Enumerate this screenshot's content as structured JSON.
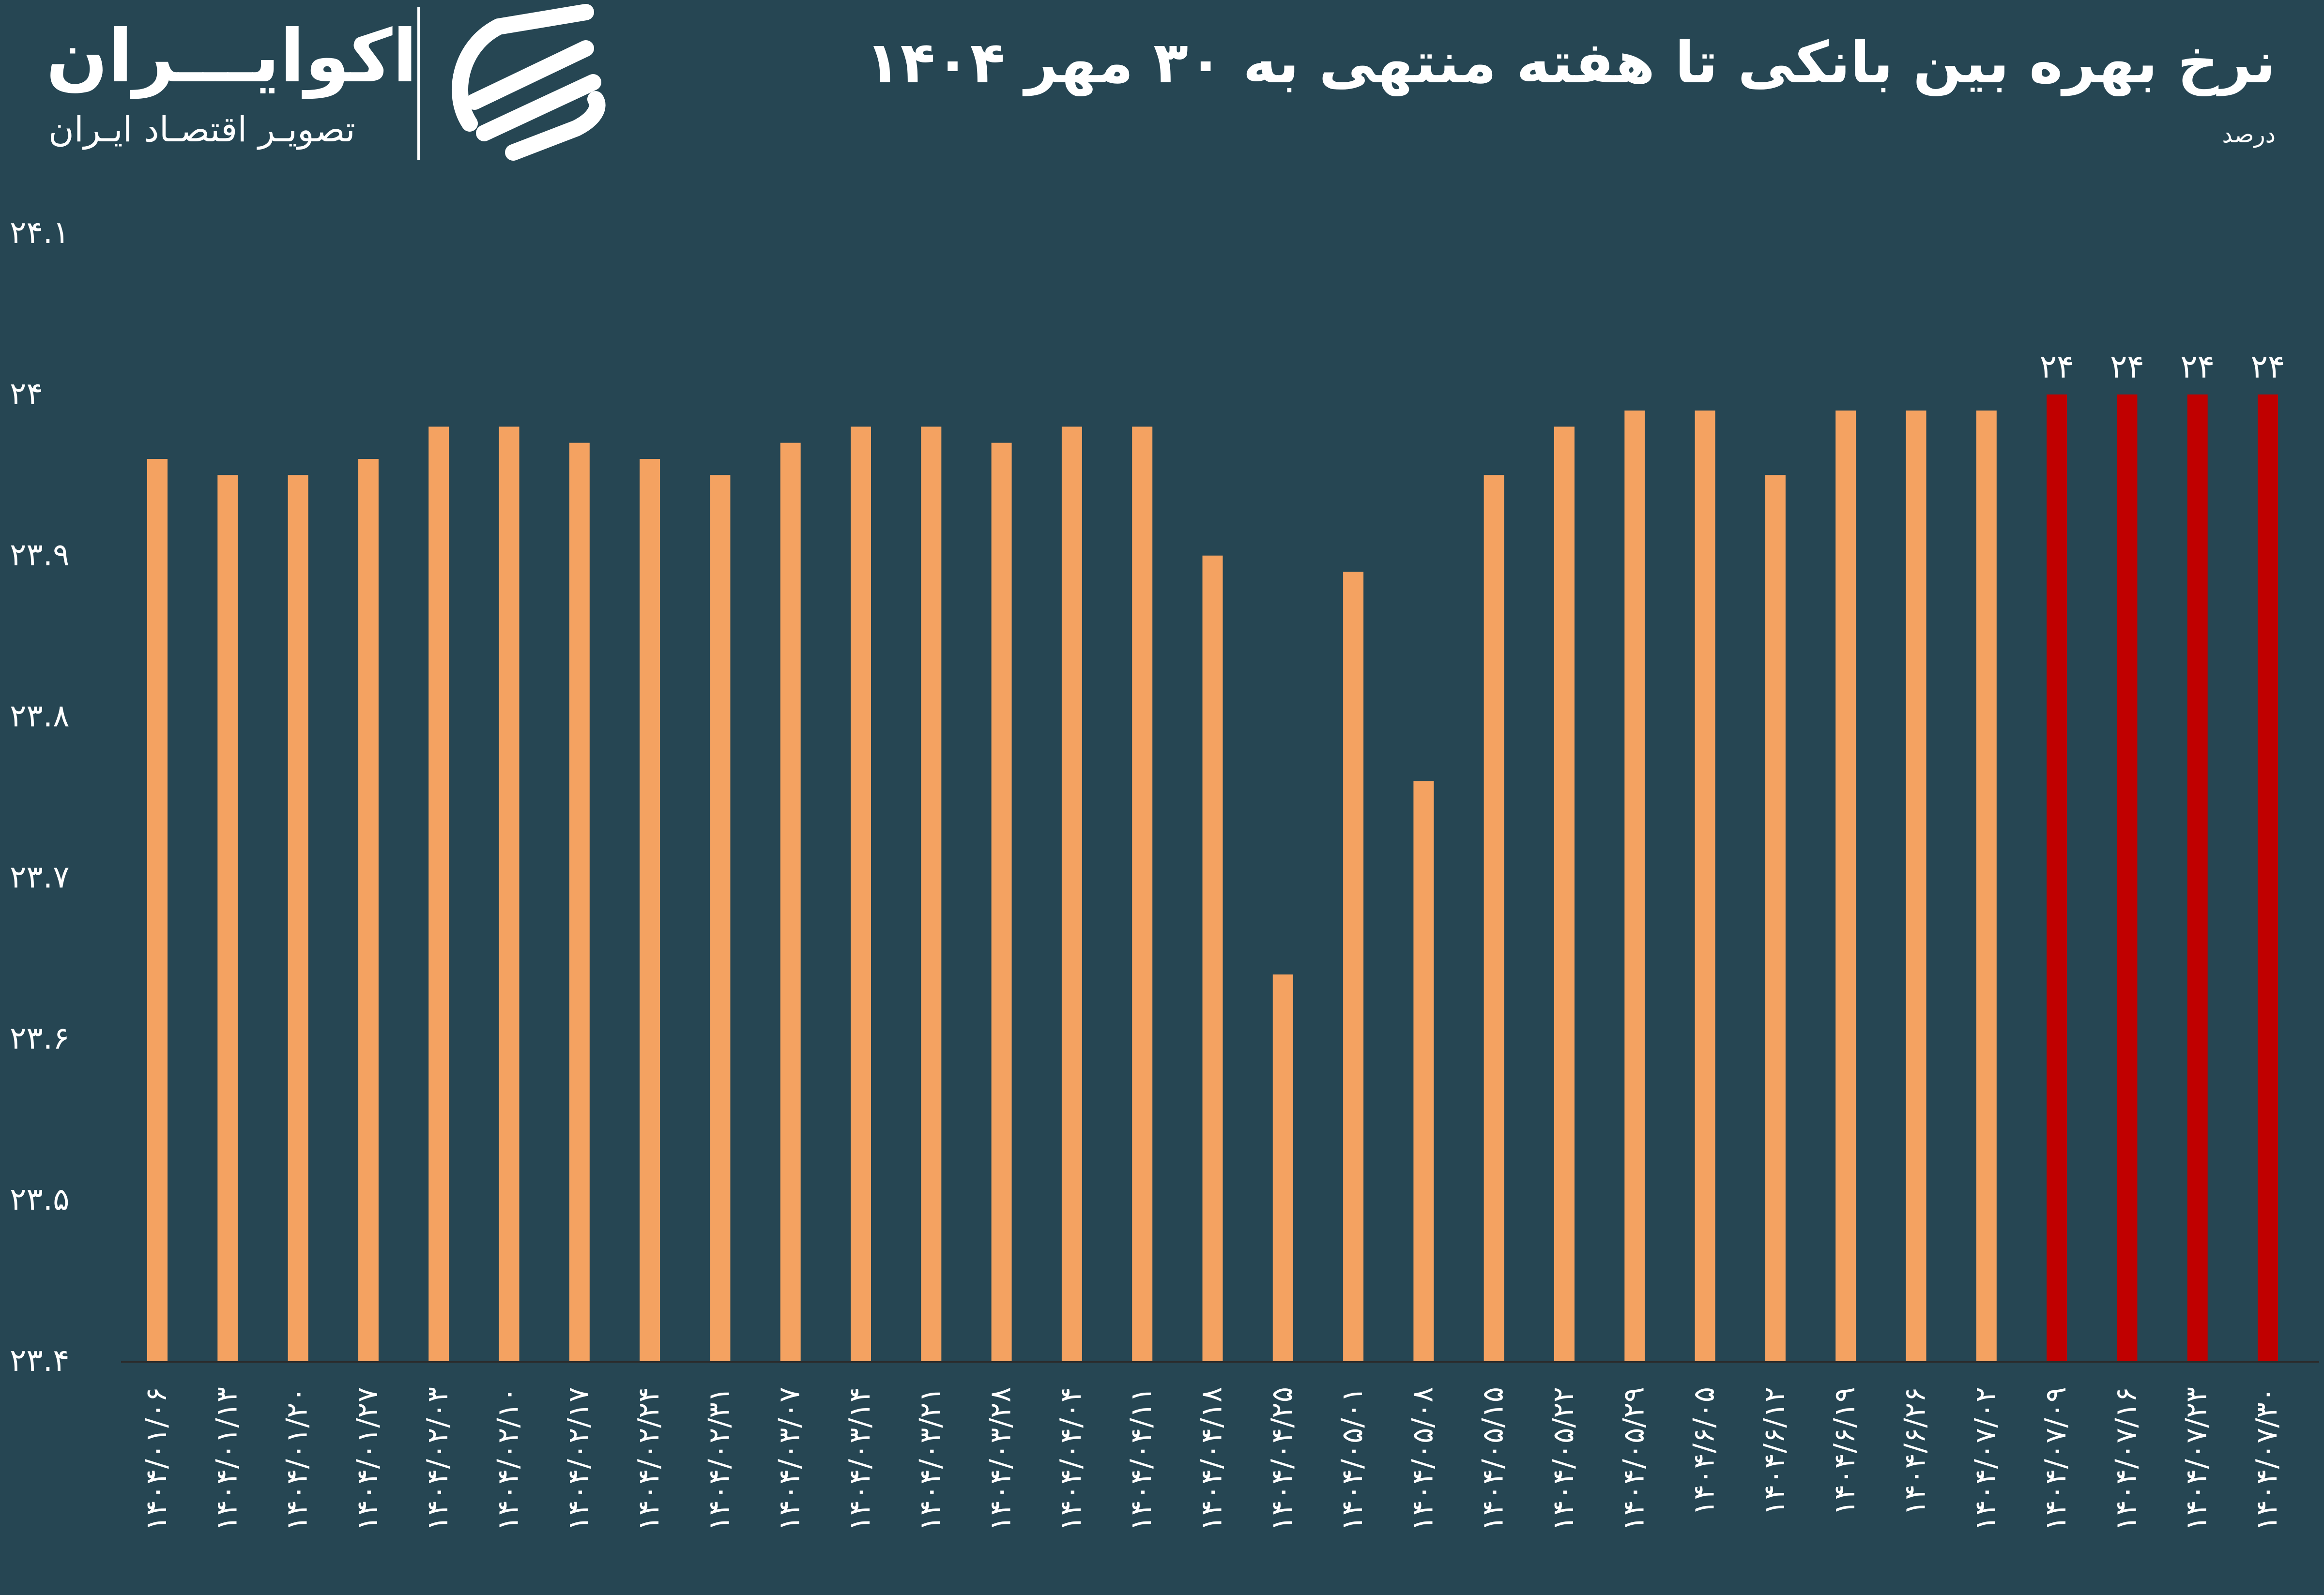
{
  "header": {
    "title": "نرخ بهره بین بانکی تا هفته منتهی به ۳۰ مهر ۱۴۰۴",
    "unit": "درصد"
  },
  "logo": {
    "name": "اکوایـــران",
    "tagline": "تصویـر اقتصـاد ایـران",
    "icon": "ecoiran-logo-mark"
  },
  "colors": {
    "background": "#264653",
    "bar": "#F4A261",
    "highlight": "#C00000",
    "text": "#FFFFFF"
  },
  "chart_data": {
    "type": "bar",
    "ylim": [
      23.4,
      24.1
    ],
    "y_ticks": [
      {
        "value": 24.1,
        "label": "۲۴.۱"
      },
      {
        "value": 24.0,
        "label": "۲۴"
      },
      {
        "value": 23.9,
        "label": "۲۳.۹"
      },
      {
        "value": 23.8,
        "label": "۲۳.۸"
      },
      {
        "value": 23.7,
        "label": "۲۳.۷"
      },
      {
        "value": 23.6,
        "label": "۲۳.۶"
      },
      {
        "value": 23.5,
        "label": "۲۳.۵"
      },
      {
        "value": 23.4,
        "label": "۲۳.۴"
      }
    ],
    "categories": [
      "۱۴۰۴/۰۱/۰۶",
      "۱۴۰۴/۰۱/۱۳",
      "۱۴۰۴/۰۱/۲۰",
      "۱۴۰۴/۰۱/۲۷",
      "۱۴۰۴/۰۲/۰۳",
      "۱۴۰۴/۰۲/۱۰",
      "۱۴۰۴/۰۲/۱۷",
      "۱۴۰۴/۰۲/۲۴",
      "۱۴۰۴/۰۲/۳۱",
      "۱۴۰۴/۰۳/۰۷",
      "۱۴۰۴/۰۳/۱۴",
      "۱۴۰۴/۰۳/۲۱",
      "۱۴۰۴/۰۳/۲۸",
      "۱۴۰۴/۰۴/۰۴",
      "۱۴۰۴/۰۴/۱۱",
      "۱۴۰۴/۰۴/۱۸",
      "۱۴۰۴/۰۴/۲۵",
      "۱۴۰۴/۰۵/۰۱",
      "۱۴۰۴/۰۵/۰۸",
      "۱۴۰۴/۰۵/۱۵",
      "۱۴۰۴/۰۵/۲۲",
      "۱۴۰۴/۰۵/۲۹",
      "۱۴۰۴/۶/۰۵",
      "۱۴۰۴/۶/۱۲",
      "۱۴۰۴/۶/۱۹",
      "۱۴۰۴/۶/۲۶",
      "۱۴۰۴/۰۷/۰۲",
      "۱۴۰۴/۰۷/۰۹",
      "۱۴۰۴/۰۷/۱۶",
      "۱۴۰۴/۰۷/۲۳",
      "۱۴۰۴/۰۷/۳۰"
    ],
    "values": [
      23.96,
      23.95,
      23.95,
      23.96,
      23.98,
      23.98,
      23.97,
      23.96,
      23.95,
      23.97,
      23.98,
      23.98,
      23.97,
      23.98,
      23.98,
      23.9,
      23.64,
      23.89,
      23.76,
      23.95,
      23.98,
      23.99,
      23.99,
      23.95,
      23.99,
      23.99,
      23.99,
      24.0,
      24.0,
      24.0,
      24.0
    ],
    "highlight_from_index": 27,
    "data_labels": [
      {
        "index": 27,
        "label": "۲۴"
      },
      {
        "index": 28,
        "label": "۲۴"
      },
      {
        "index": 29,
        "label": "۲۴"
      },
      {
        "index": 30,
        "label": "۲۴"
      }
    ],
    "grid": false,
    "legend": "none"
  }
}
